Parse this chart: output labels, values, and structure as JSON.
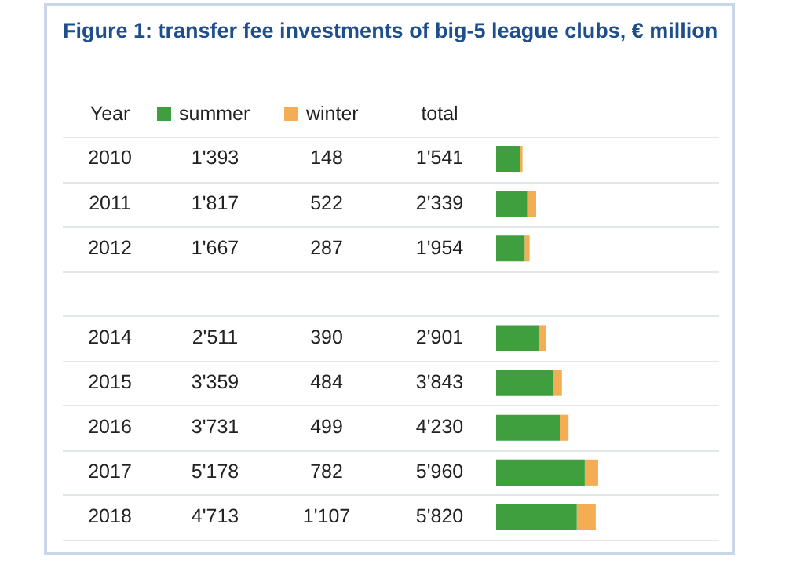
{
  "chart_data": {
    "type": "bar",
    "orientation": "horizontal",
    "stacked": true,
    "title": "Figure 1: transfer fee investments of big-5 league clubs, € million",
    "ylabel": "Year",
    "annotations": [
      "total"
    ],
    "categories": [
      "2010",
      "2011",
      "2012",
      null,
      "2014",
      "2015",
      "2016",
      "2017",
      "2018"
    ],
    "series": [
      {
        "name": "summer",
        "color": "#3f9f3f",
        "values": [
          1393,
          1817,
          1667,
          null,
          2511,
          3359,
          3731,
          5178,
          4713
        ],
        "value_labels": [
          "1'393",
          "1'817",
          "1'667",
          null,
          "2'511",
          "3'359",
          "3'731",
          "5'178",
          "4'713"
        ]
      },
      {
        "name": "winter",
        "color": "#f5ad55",
        "values": [
          148,
          522,
          287,
          null,
          390,
          484,
          499,
          782,
          1107
        ],
        "value_labels": [
          "148",
          "522",
          "287",
          null,
          "390",
          "484",
          "499",
          "782",
          "1'107"
        ]
      }
    ],
    "totals": [
      "1'541",
      "2'339",
      "1'954",
      null,
      "2'901",
      "3'843",
      "4'230",
      "5'960",
      "5'820"
    ],
    "legend": "top"
  }
}
